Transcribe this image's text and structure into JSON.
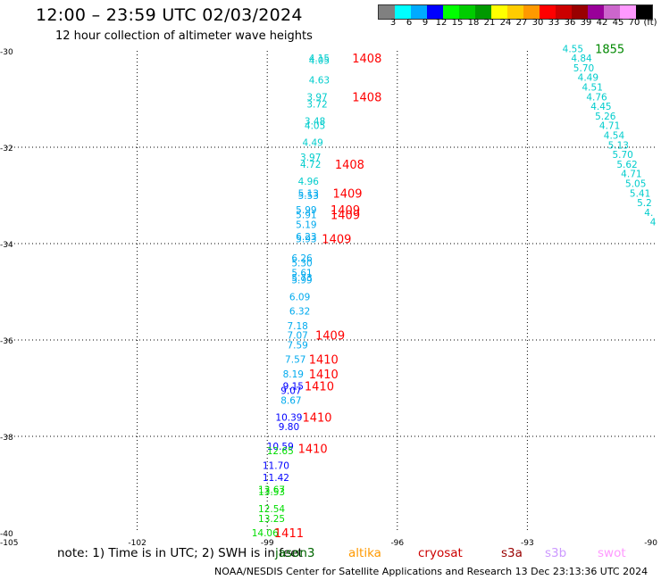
{
  "header": {
    "title": "12:00 – 23:59 UTC 02/03/2024",
    "subtitle": "12 hour collection of altimeter wave heights"
  },
  "legend": {
    "colors": [
      "#808080",
      "#00ffff",
      "#00aaff",
      "#0000ff",
      "#00ff00",
      "#00cc00",
      "#009900",
      "#ffff00",
      "#ffcc00",
      "#ff9900",
      "#ff0000",
      "#cc0000",
      "#990000",
      "#990099",
      "#cc66cc",
      "#ff99ff",
      "#000000"
    ],
    "labels": [
      "3",
      "6",
      "9",
      "12",
      "15",
      "18",
      "21",
      "24",
      "27",
      "30",
      "33",
      "36",
      "39",
      "42",
      "45",
      "70",
      "(ft)"
    ]
  },
  "axes": {
    "y_labels": [
      "-30",
      "-32",
      "-34",
      "-36",
      "-38",
      "-40"
    ],
    "x_labels": [
      "-105",
      "-102",
      "-99",
      "-96",
      "-93",
      "-90"
    ]
  },
  "map_data": {
    "heights": [
      {
        "lon": -97.8,
        "lat": -30.15,
        "v": "4.15",
        "c": "#00cccc"
      },
      {
        "lon": -97.8,
        "lat": -30.19,
        "v": "4.05",
        "c": "#00cccc"
      },
      {
        "lon": -97.8,
        "lat": -30.6,
        "v": "4.63",
        "c": "#00cccc"
      },
      {
        "lon": -97.85,
        "lat": -30.95,
        "v": "3.97",
        "c": "#00cccc"
      },
      {
        "lon": -97.85,
        "lat": -31.1,
        "v": "3.72",
        "c": "#00cccc"
      },
      {
        "lon": -97.9,
        "lat": -31.45,
        "v": "3.48",
        "c": "#00cccc"
      },
      {
        "lon": -97.9,
        "lat": -31.55,
        "v": "4.05",
        "c": "#00cccc"
      },
      {
        "lon": -97.95,
        "lat": -31.9,
        "v": "4.49",
        "c": "#00cccc"
      },
      {
        "lon": -98.0,
        "lat": -32.2,
        "v": "3.97",
        "c": "#00cccc"
      },
      {
        "lon": -98.0,
        "lat": -32.35,
        "v": "4.72",
        "c": "#00cccc"
      },
      {
        "lon": -98.05,
        "lat": -32.7,
        "v": "4.96",
        "c": "#00cccc"
      },
      {
        "lon": -98.05,
        "lat": -32.95,
        "v": "5.13",
        "c": "#00aaee"
      },
      {
        "lon": -98.05,
        "lat": -33.0,
        "v": "5.53",
        "c": "#00aaee"
      },
      {
        "lon": -98.1,
        "lat": -33.3,
        "v": "5.99",
        "c": "#00aaee"
      },
      {
        "lon": -98.1,
        "lat": -33.4,
        "v": "5.91",
        "c": "#00aaee"
      },
      {
        "lon": -98.1,
        "lat": -33.6,
        "v": "5.19",
        "c": "#00aaee"
      },
      {
        "lon": -98.1,
        "lat": -33.85,
        "v": "6.23",
        "c": "#00aaee"
      },
      {
        "lon": -98.1,
        "lat": -33.9,
        "v": "5.93",
        "c": "#00aaee"
      },
      {
        "lon": -98.2,
        "lat": -34.3,
        "v": "6.26",
        "c": "#00aaee"
      },
      {
        "lon": -98.2,
        "lat": -34.4,
        "v": "5.30",
        "c": "#00aaee"
      },
      {
        "lon": -98.2,
        "lat": -34.6,
        "v": "5.61",
        "c": "#00aaee"
      },
      {
        "lon": -98.2,
        "lat": -34.7,
        "v": "5.73",
        "c": "#00aaee"
      },
      {
        "lon": -98.2,
        "lat": -34.75,
        "v": "5.99",
        "c": "#00aaee"
      },
      {
        "lon": -98.25,
        "lat": -35.1,
        "v": "6.09",
        "c": "#00aaee"
      },
      {
        "lon": -98.25,
        "lat": -35.4,
        "v": "6.32",
        "c": "#00aaee"
      },
      {
        "lon": -98.3,
        "lat": -35.7,
        "v": "7.18",
        "c": "#00aaee"
      },
      {
        "lon": -98.3,
        "lat": -35.9,
        "v": "7.07",
        "c": "#00aaee"
      },
      {
        "lon": -98.3,
        "lat": -36.1,
        "v": "7.59",
        "c": "#00aaee"
      },
      {
        "lon": -98.35,
        "lat": -36.4,
        "v": "7.57",
        "c": "#00aaee"
      },
      {
        "lon": -98.4,
        "lat": -36.7,
        "v": "8.19",
        "c": "#00aaee"
      },
      {
        "lon": -98.4,
        "lat": -36.95,
        "v": "9.15",
        "c": "#0000ff"
      },
      {
        "lon": -98.45,
        "lat": -37.05,
        "v": "9.07",
        "c": "#0000ff"
      },
      {
        "lon": -98.45,
        "lat": -37.25,
        "v": "8.67",
        "c": "#00aaee"
      },
      {
        "lon": -98.5,
        "lat": -37.6,
        "v": "10.39",
        "c": "#0000ff"
      },
      {
        "lon": -98.5,
        "lat": -37.8,
        "v": "9.80",
        "c": "#0000ff"
      },
      {
        "lon": -98.7,
        "lat": -38.2,
        "v": "10.59",
        "c": "#0000ff"
      },
      {
        "lon": -98.7,
        "lat": -38.3,
        "v": "12.65",
        "c": "#00dd00"
      },
      {
        "lon": -98.8,
        "lat": -38.6,
        "v": "11.70",
        "c": "#0000ff"
      },
      {
        "lon": -98.8,
        "lat": -38.85,
        "v": "11.42",
        "c": "#0000ff"
      },
      {
        "lon": -98.9,
        "lat": -39.1,
        "v": "13.67",
        "c": "#00dd00"
      },
      {
        "lon": -98.9,
        "lat": -39.15,
        "v": "13.53",
        "c": "#00dd00"
      },
      {
        "lon": -98.9,
        "lat": -39.5,
        "v": "12.54",
        "c": "#00dd00"
      },
      {
        "lon": -98.9,
        "lat": -39.7,
        "v": "13.25",
        "c": "#00dd00"
      },
      {
        "lon": -99.05,
        "lat": -40.0,
        "v": "14.06",
        "c": "#00dd00"
      },
      {
        "lon": -91.95,
        "lat": -29.95,
        "v": "4.55",
        "c": "#00cccc"
      },
      {
        "lon": -91.75,
        "lat": -30.15,
        "v": "4.84",
        "c": "#00cccc"
      },
      {
        "lon": -91.7,
        "lat": -30.35,
        "v": "5.70",
        "c": "#00cccc"
      },
      {
        "lon": -91.6,
        "lat": -30.55,
        "v": "4.49",
        "c": "#00cccc"
      },
      {
        "lon": -91.5,
        "lat": -30.75,
        "v": "4.51",
        "c": "#00cccc"
      },
      {
        "lon": -91.4,
        "lat": -30.95,
        "v": "4.76",
        "c": "#00cccc"
      },
      {
        "lon": -91.3,
        "lat": -31.15,
        "v": "4.45",
        "c": "#00cccc"
      },
      {
        "lon": -91.2,
        "lat": -31.35,
        "v": "5.26",
        "c": "#00cccc"
      },
      {
        "lon": -91.1,
        "lat": -31.55,
        "v": "4.71",
        "c": "#00cccc"
      },
      {
        "lon": -91.0,
        "lat": -31.75,
        "v": "4.54",
        "c": "#00cccc"
      },
      {
        "lon": -90.9,
        "lat": -31.95,
        "v": "5.13",
        "c": "#00cccc"
      },
      {
        "lon": -90.8,
        "lat": -32.15,
        "v": "5.70",
        "c": "#00cccc"
      },
      {
        "lon": -90.7,
        "lat": -32.35,
        "v": "5.62",
        "c": "#00cccc"
      },
      {
        "lon": -90.6,
        "lat": -32.55,
        "v": "4.71",
        "c": "#00cccc"
      },
      {
        "lon": -90.5,
        "lat": -32.75,
        "v": "5.05",
        "c": "#00cccc"
      },
      {
        "lon": -90.4,
        "lat": -32.95,
        "v": "5.41",
        "c": "#00cccc"
      },
      {
        "lon": -90.3,
        "lat": -33.15,
        "v": "5.2",
        "c": "#00cccc"
      },
      {
        "lon": -90.2,
        "lat": -33.35,
        "v": "4.",
        "c": "#00cccc"
      },
      {
        "lon": -90.1,
        "lat": -33.55,
        "v": "4",
        "c": "#00cccc"
      }
    ],
    "times": [
      {
        "lon": -96.7,
        "lat": -30.15,
        "v": "1408",
        "c": "#ff0000"
      },
      {
        "lon": -96.7,
        "lat": -30.95,
        "v": "1408",
        "c": "#ff0000"
      },
      {
        "lon": -97.1,
        "lat": -32.35,
        "v": "1408",
        "c": "#ff0000"
      },
      {
        "lon": -97.15,
        "lat": -32.95,
        "v": "1409",
        "c": "#ff0000"
      },
      {
        "lon": -97.2,
        "lat": -33.3,
        "v": "1409",
        "c": "#ff0000"
      },
      {
        "lon": -97.2,
        "lat": -33.4,
        "v": "1409",
        "c": "#ff0000"
      },
      {
        "lon": -97.4,
        "lat": -33.9,
        "v": "1409",
        "c": "#ff0000"
      },
      {
        "lon": -97.55,
        "lat": -35.9,
        "v": "1409",
        "c": "#ff0000"
      },
      {
        "lon": -97.7,
        "lat": -36.4,
        "v": "1410",
        "c": "#ff0000"
      },
      {
        "lon": -97.7,
        "lat": -36.7,
        "v": "1410",
        "c": "#ff0000"
      },
      {
        "lon": -97.8,
        "lat": -36.95,
        "v": "1410",
        "c": "#ff0000"
      },
      {
        "lon": -97.85,
        "lat": -37.6,
        "v": "1410",
        "c": "#ff0000"
      },
      {
        "lon": -97.95,
        "lat": -38.25,
        "v": "1410",
        "c": "#ff0000"
      },
      {
        "lon": -98.5,
        "lat": -40.0,
        "v": "1411",
        "c": "#ff0000"
      },
      {
        "lon": -91.1,
        "lat": -29.95,
        "v": "1855",
        "c": "#008800"
      }
    ]
  },
  "footer": {
    "note": "note:  1) Time is in UTC; 2) SWH is in feet",
    "satellites": [
      {
        "name": "jason3",
        "color": "#006600"
      },
      {
        "name": "altika",
        "color": "#ff9900"
      },
      {
        "name": "cryosat",
        "color": "#cc0000"
      },
      {
        "name": "s3a",
        "color": "#990000"
      },
      {
        "name": "s3b",
        "color": "#cc99ff"
      },
      {
        "name": "swot",
        "color": "#ff99ff"
      }
    ],
    "credit": "NOAA/NESDIS Center for Satellite Applications and Research   13 Dec 23:13:36 UTC 2024"
  }
}
